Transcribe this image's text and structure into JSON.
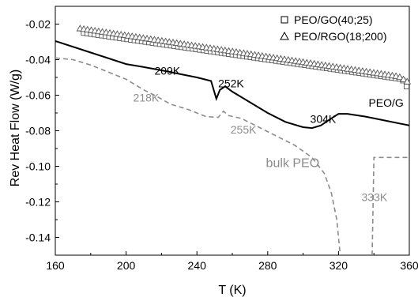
{
  "chart_data": {
    "type": "line",
    "xlabel": "T (K)",
    "ylabel": "Rev Heat Flow (W/g)",
    "xlim": [
      160,
      360
    ],
    "ylim": [
      -0.15,
      -0.01
    ],
    "x_ticks": [
      160,
      200,
      240,
      280,
      320,
      360
    ],
    "x_tick_labels": [
      "160",
      "200",
      "240",
      "280",
      "320",
      "360"
    ],
    "y_ticks": [
      -0.02,
      -0.04,
      -0.06,
      -0.08,
      -0.1,
      -0.12,
      -0.14
    ],
    "y_tick_labels": [
      "-0.02",
      "-0.04",
      "-0.06",
      "-0.08",
      "-0.10",
      "-0.12",
      "-0.14"
    ],
    "grid": false,
    "legend_position": "top-right",
    "colors": {
      "black": "#000000",
      "gray": "#8c8c8c",
      "marker": "#555555"
    },
    "series": [
      {
        "name": "PEO/GO(40;25)",
        "style": "square-markers",
        "x": [
          176,
          196,
          216,
          236,
          256,
          276,
          296,
          316,
          336,
          356,
          360
        ],
        "y": [
          -0.025,
          -0.0279,
          -0.0308,
          -0.0337,
          -0.0366,
          -0.0395,
          -0.0424,
          -0.0453,
          -0.0482,
          -0.0511,
          -0.0577
        ]
      },
      {
        "name": "PEO/RGO(18;200)",
        "style": "triangle-markers",
        "x": [
          174,
          194,
          214,
          234,
          254,
          274,
          294,
          314,
          334,
          354,
          360
        ],
        "y": [
          -0.0225,
          -0.0255,
          -0.0285,
          -0.0315,
          -0.0345,
          -0.0375,
          -0.0405,
          -0.0435,
          -0.0465,
          -0.0495,
          -0.0531
        ]
      },
      {
        "name": "PEO/G",
        "style": "solid-line",
        "x": [
          160,
          180,
          200,
          209,
          220,
          240,
          248,
          251,
          253,
          256,
          260,
          270,
          280,
          290,
          300,
          305,
          310,
          316,
          320,
          325,
          335,
          345,
          360
        ],
        "y": [
          -0.0295,
          -0.036,
          -0.0425,
          -0.044,
          -0.046,
          -0.05,
          -0.052,
          -0.062,
          -0.057,
          -0.055,
          -0.058,
          -0.064,
          -0.07,
          -0.075,
          -0.078,
          -0.0785,
          -0.077,
          -0.073,
          -0.0705,
          -0.0705,
          -0.072,
          -0.074,
          -0.077
        ]
      },
      {
        "name": "bulk PEO",
        "style": "dashed-line",
        "x": [
          160,
          170,
          180,
          190,
          200,
          210,
          218,
          225,
          235,
          245,
          252,
          255,
          258,
          265,
          275,
          285,
          295,
          305,
          312,
          316,
          319,
          321
        ],
        "y": [
          -0.039,
          -0.04,
          -0.043,
          -0.047,
          -0.051,
          -0.057,
          -0.061,
          -0.065,
          -0.068,
          -0.072,
          -0.0725,
          -0.069,
          -0.0715,
          -0.073,
          -0.078,
          -0.083,
          -0.088,
          -0.095,
          -0.104,
          -0.115,
          -0.13,
          -0.15
        ]
      },
      {
        "name": "bulk PEO",
        "style": "dashed-line",
        "x": [
          339,
          340,
          360
        ],
        "y": [
          -0.15,
          -0.095,
          -0.095
        ]
      }
    ],
    "annotations": [
      {
        "text": "209K",
        "x": 216,
        "y": -0.0485,
        "color": "black",
        "size": "normal"
      },
      {
        "text": "252K",
        "x": 252,
        "y": -0.0555,
        "color": "black",
        "size": "normal"
      },
      {
        "text": "304K",
        "x": 304,
        "y": -0.0755,
        "color": "black",
        "size": "normal"
      },
      {
        "text": "PEO/G",
        "x": 337,
        "y": -0.0665,
        "color": "black",
        "size": "normal"
      },
      {
        "text": "218K",
        "x": 204,
        "y": -0.0635,
        "color": "gray",
        "size": "normal"
      },
      {
        "text": "255K",
        "x": 259,
        "y": -0.0815,
        "color": "gray",
        "size": "normal"
      },
      {
        "text": "bulk PEO",
        "x": 279,
        "y": -0.1005,
        "color": "gray",
        "size": "big"
      },
      {
        "text": "333K",
        "x": 333,
        "y": -0.1195,
        "color": "gray",
        "size": "normal"
      }
    ]
  }
}
